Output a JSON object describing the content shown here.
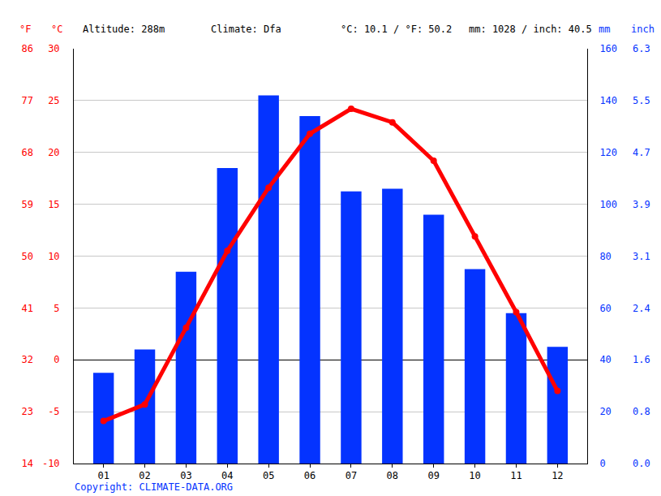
{
  "chart_data": {
    "type": "bar",
    "categories": [
      "01",
      "02",
      "03",
      "04",
      "05",
      "06",
      "07",
      "08",
      "09",
      "10",
      "11",
      "12"
    ],
    "series": [
      {
        "type": "bar",
        "color": "#0433ff",
        "axis": "y2",
        "values": [
          35,
          44,
          74,
          114,
          142,
          134,
          105,
          106,
          96,
          75,
          58,
          45
        ]
      },
      {
        "type": "line",
        "color": "#ff0000",
        "marker": "circle",
        "line_style": "solid",
        "values": [
          -5.9,
          -4.3,
          3.1,
          10.5,
          16.6,
          21.8,
          24.2,
          22.9,
          19.2,
          11.9,
          4.6,
          -3.0
        ]
      }
    ],
    "ylabel": "°C",
    "ylim": [
      -10,
      30
    ],
    "yticks": [
      -10,
      -5,
      0,
      5,
      10,
      15,
      20,
      25,
      30
    ],
    "y2label": "mm",
    "y2lim": [
      0,
      160
    ],
    "y2ticks": [
      0,
      20,
      40,
      60,
      80,
      100,
      120,
      140,
      160
    ],
    "y3label": "°F",
    "y3lim": [
      14,
      86
    ],
    "y3ticks": [
      14,
      23,
      32,
      41,
      50,
      59,
      68,
      77,
      86
    ],
    "y4label": "inch",
    "y4ticks": [
      {
        "value": 0,
        "label": "0.0"
      },
      {
        "value": 20,
        "label": "0.8"
      },
      {
        "value": 40,
        "label": "1.6"
      },
      {
        "value": 60,
        "label": "2.4"
      },
      {
        "value": 80,
        "label": "3.1"
      },
      {
        "value": 100,
        "label": "3.9"
      },
      {
        "value": 120,
        "label": "4.7"
      },
      {
        "value": 140,
        "label": "5.5"
      },
      {
        "value": 160,
        "label": "6.3"
      }
    ],
    "annotations": [
      "Altitude: 288m",
      "Climate: Dfa",
      "°C: 10.1 / °F: 50.2",
      "mm: 1028 / inch: 40.5",
      "Copyright: CLIMATE-DATA.ORG"
    ],
    "grid": true
  }
}
